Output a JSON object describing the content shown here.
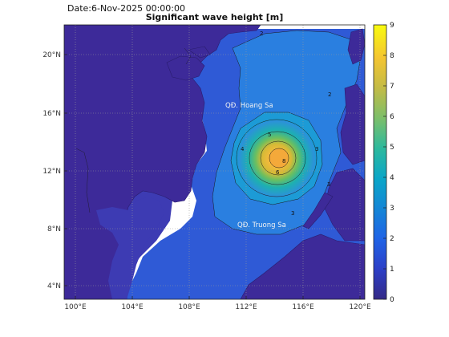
{
  "header": {
    "date_text": "Date:6-Nov-2025 00:00:00",
    "title": "Significant wave height [m]"
  },
  "map": {
    "lon_labels": [
      "100°E",
      "104°E",
      "108°E",
      "112°E",
      "116°E",
      "120°E"
    ],
    "lat_labels": [
      "20°N",
      "16°N",
      "12°N",
      "8°N",
      "4°N"
    ],
    "annotations": [
      "QĐ. Hoang Sa",
      "QĐ. Truong Sa"
    ],
    "contour_labels": [
      "1",
      "2",
      "3",
      "4",
      "5",
      "6",
      "7",
      "8"
    ],
    "land_color": "#3d2a99",
    "grid": "dotted"
  },
  "colorbar": {
    "ticks": [
      "0",
      "1",
      "2",
      "3",
      "4",
      "5",
      "6",
      "7",
      "8",
      "9"
    ],
    "colormap": "parula",
    "range": [
      0,
      9
    ]
  },
  "chart_data": {
    "type": "heatmap",
    "variable": "Significant wave height",
    "units": "m",
    "x_axis": "longitude",
    "y_axis": "latitude",
    "xlim": [
      99.5,
      120.2
    ],
    "ylim": [
      3.2,
      21.8
    ],
    "zlim": [
      0,
      9
    ],
    "peak": {
      "lon": 114.2,
      "lat": 12.9,
      "value": 8.5
    }
  }
}
